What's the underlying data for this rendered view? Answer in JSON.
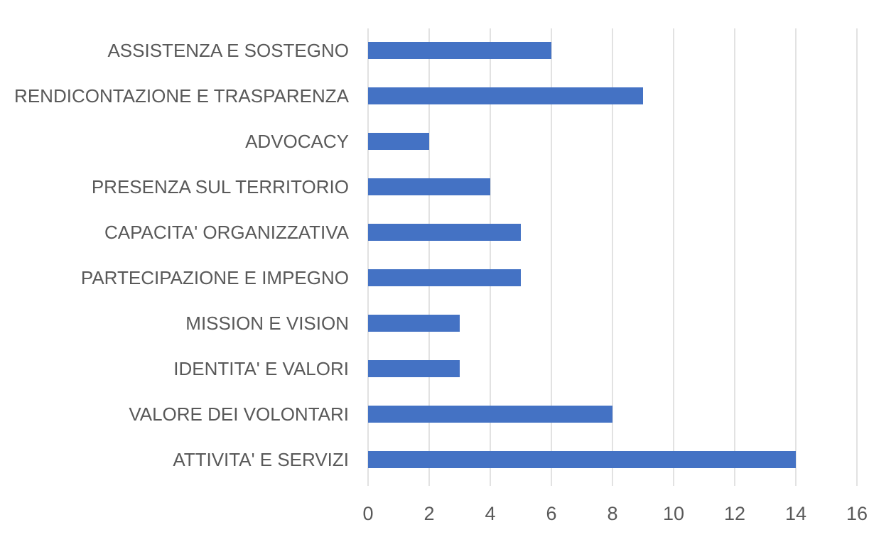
{
  "chart_data": {
    "type": "bar",
    "orientation": "horizontal",
    "categories": [
      "ASSISTENZA E SOSTEGNO",
      "RENDICONTAZIONE E TRASPARENZA",
      "ADVOCACY",
      "PRESENZA SUL TERRITORIO",
      "CAPACITA' ORGANIZZATIVA",
      "PARTECIPAZIONE E IMPEGNO",
      "MISSION E VISION",
      "IDENTITA' E VALORI",
      "VALORE DEI VOLONTARI",
      "ATTIVITA' E SERVIZI"
    ],
    "values": [
      6,
      9,
      2,
      4,
      5,
      5,
      3,
      3,
      8,
      14
    ],
    "title": "",
    "xlabel": "",
    "ylabel": "",
    "xlim": [
      0,
      16
    ],
    "xticks": [
      "0",
      "2",
      "4",
      "6",
      "8",
      "10",
      "12",
      "14",
      "16"
    ],
    "grid": "vertical",
    "legend": "none",
    "bar_color": "#4472c4"
  }
}
